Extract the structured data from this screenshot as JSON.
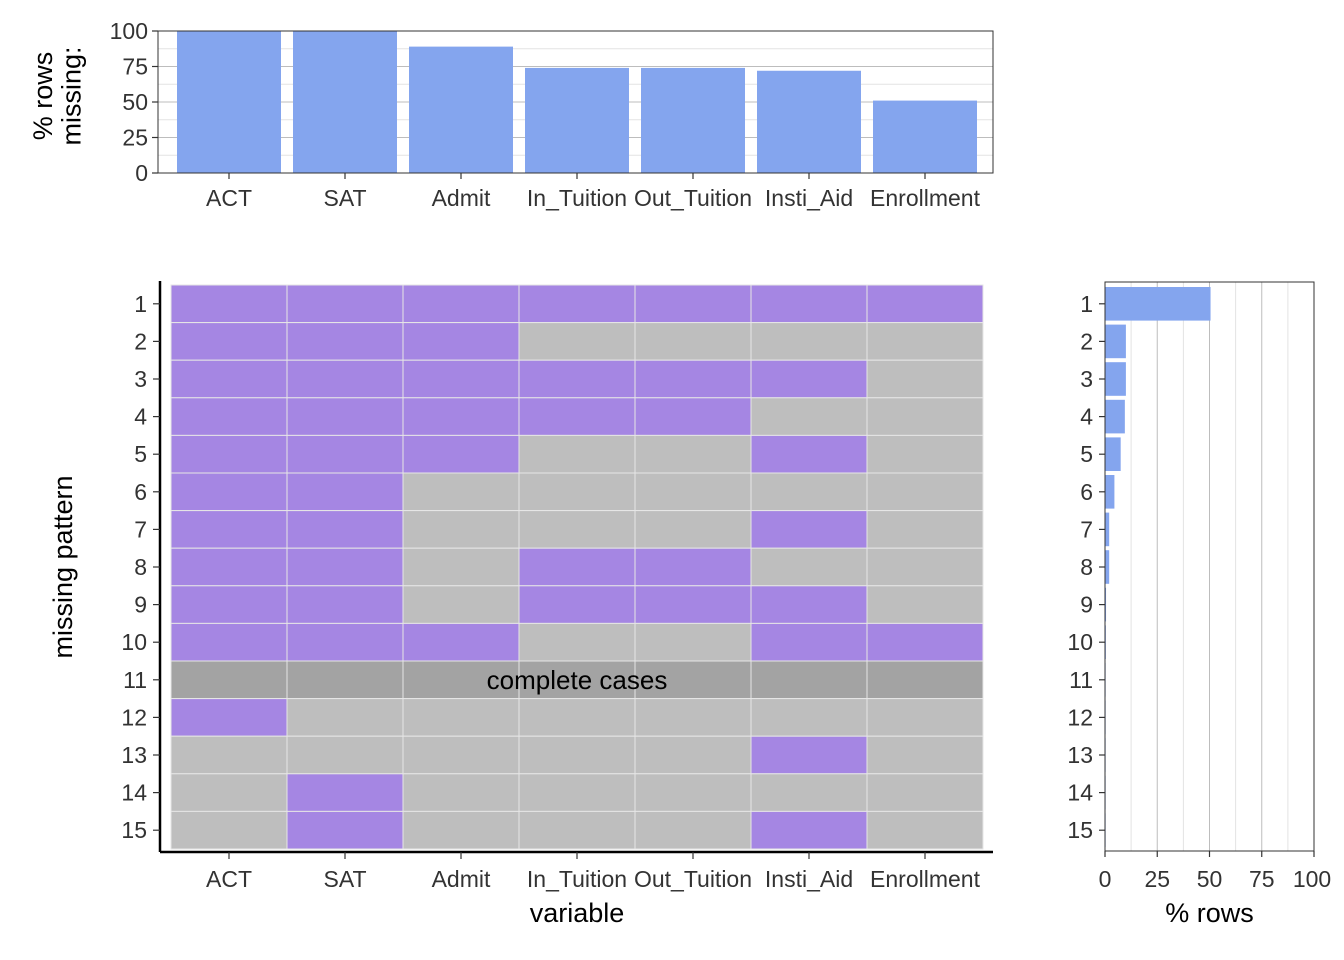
{
  "colors": {
    "missing": "#A586E3",
    "present": "#BEBEBE",
    "complete": "#A3A3A3",
    "bar": "#84A5EE",
    "grid": "#D9D9D9",
    "border": "#333333"
  },
  "chart_data": [
    {
      "type": "bar",
      "name": "top-missing-by-variable",
      "categories": [
        "ACT",
        "SAT",
        "Admit",
        "In_Tuition",
        "Out_Tuition",
        "Insti_Aid",
        "Enrollment"
      ],
      "values": [
        100,
        100,
        89,
        74,
        74,
        72,
        51
      ],
      "ylabel": "% rows\nmissing:",
      "ylim": [
        0,
        100
      ],
      "yticks": [
        "0",
        "25",
        "50",
        "75",
        "100"
      ],
      "grid": true
    },
    {
      "type": "heatmap",
      "name": "missing-pattern-grid",
      "columns": [
        "ACT",
        "SAT",
        "Admit",
        "In_Tuition",
        "Out_Tuition",
        "Insti_Aid",
        "Enrollment"
      ],
      "rows": [
        "1",
        "2",
        "3",
        "4",
        "5",
        "6",
        "7",
        "8",
        "9",
        "10",
        "11",
        "12",
        "13",
        "14",
        "15"
      ],
      "matrix": [
        [
          1,
          1,
          1,
          1,
          1,
          1,
          1
        ],
        [
          1,
          1,
          1,
          0,
          0,
          0,
          0
        ],
        [
          1,
          1,
          1,
          1,
          1,
          1,
          0
        ],
        [
          1,
          1,
          1,
          1,
          1,
          0,
          0
        ],
        [
          1,
          1,
          1,
          0,
          0,
          1,
          0
        ],
        [
          1,
          1,
          0,
          0,
          0,
          0,
          0
        ],
        [
          1,
          1,
          0,
          0,
          0,
          1,
          0
        ],
        [
          1,
          1,
          0,
          1,
          1,
          0,
          0
        ],
        [
          1,
          1,
          0,
          1,
          1,
          1,
          0
        ],
        [
          1,
          1,
          1,
          0,
          0,
          1,
          1
        ],
        [
          2,
          2,
          2,
          2,
          2,
          2,
          2
        ],
        [
          1,
          0,
          0,
          0,
          0,
          0,
          0
        ],
        [
          0,
          0,
          0,
          0,
          0,
          1,
          0
        ],
        [
          0,
          1,
          0,
          0,
          0,
          0,
          0
        ],
        [
          0,
          1,
          0,
          0,
          0,
          1,
          0
        ]
      ],
      "complete_cases_row": "11",
      "complete_label": "complete cases",
      "xlabel": "variable",
      "ylabel": "missing pattern"
    },
    {
      "type": "bar",
      "name": "right-pattern-share",
      "orientation": "horizontal",
      "categories": [
        "1",
        "2",
        "3",
        "4",
        "5",
        "6",
        "7",
        "8",
        "9",
        "10",
        "11",
        "12",
        "13",
        "14",
        "15"
      ],
      "values": [
        50.5,
        10,
        10,
        9.5,
        7.5,
        4.5,
        2,
        2,
        0.5,
        0.4,
        0.3,
        0.3,
        0.3,
        0.3,
        0.3
      ],
      "xlabel": "% rows",
      "xlim": [
        0,
        100
      ],
      "xticks": [
        "0",
        "25",
        "50",
        "75",
        "100"
      ],
      "grid": true
    }
  ]
}
